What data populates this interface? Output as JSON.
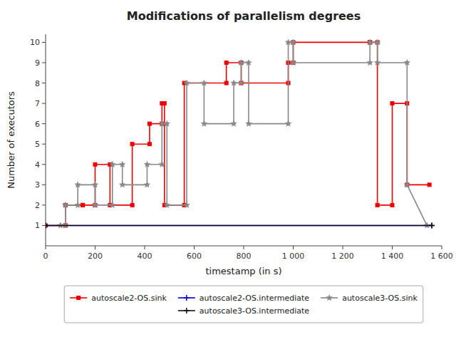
{
  "chart_data": {
    "type": "line",
    "title": "Modifications of parallelism degrees",
    "xlabel": "timestamp (in s)",
    "ylabel": "Number of executors",
    "xlim": [
      0,
      1600
    ],
    "ylim": [
      0,
      10.4
    ],
    "xticks": [
      0,
      200,
      400,
      600,
      800,
      {
        "value": 1000,
        "label": "1 000"
      },
      {
        "value": 1200,
        "label": "1 200"
      },
      {
        "value": 1400,
        "label": "1 400"
      },
      {
        "value": 1600,
        "label": "1 600"
      }
    ],
    "yticks": [
      1,
      2,
      3,
      4,
      5,
      6,
      7,
      8,
      9,
      10
    ],
    "grid": false,
    "legend": "bottom",
    "series": [
      {
        "name": "autoscale2-OS.sink",
        "color": "#ee0000",
        "marker": "square",
        "x": [
          0,
          80,
          80,
          150,
          150,
          200,
          200,
          260,
          260,
          350,
          350,
          420,
          420,
          470,
          470,
          480,
          480,
          560,
          560,
          730,
          730,
          790,
          790,
          980,
          980,
          1000,
          1000,
          1310,
          1310,
          1340,
          1340,
          1400,
          1400,
          1460,
          1460,
          1550
        ],
        "values": [
          1,
          1,
          2,
          2,
          2,
          2,
          4,
          4,
          2,
          2,
          5,
          5,
          6,
          6,
          7,
          7,
          2,
          2,
          8,
          8,
          9,
          9,
          8,
          8,
          9,
          9,
          10,
          10,
          10,
          10,
          2,
          2,
          7,
          7,
          3,
          3
        ]
      },
      {
        "name": "autoscale2-OS.intermediate",
        "color": "#0000dd",
        "marker": "plus",
        "x": [
          0,
          1560
        ],
        "values": [
          1,
          1
        ]
      },
      {
        "name": "autoscale3-OS.sink",
        "color": "#888888",
        "marker": "star",
        "x": [
          60,
          80,
          80,
          130,
          130,
          200,
          200,
          270,
          270,
          310,
          310,
          410,
          410,
          470,
          470,
          490,
          490,
          570,
          570,
          640,
          640,
          760,
          760,
          790,
          790,
          820,
          820,
          980,
          980,
          1000,
          1000,
          1310,
          1310,
          1340,
          1340,
          1460,
          1460,
          1540
        ],
        "values": [
          1,
          1,
          2,
          2,
          3,
          3,
          2,
          2,
          4,
          4,
          3,
          3,
          4,
          4,
          6,
          6,
          2,
          2,
          8,
          8,
          6,
          6,
          8,
          8,
          9,
          9,
          6,
          6,
          10,
          10,
          9,
          9,
          10,
          10,
          9,
          9,
          3,
          1
        ]
      },
      {
        "name": "autoscale3-OS.intermediate",
        "color": "#111111",
        "marker": "plus",
        "x": [
          0,
          1560
        ],
        "values": [
          1,
          1
        ]
      }
    ]
  }
}
